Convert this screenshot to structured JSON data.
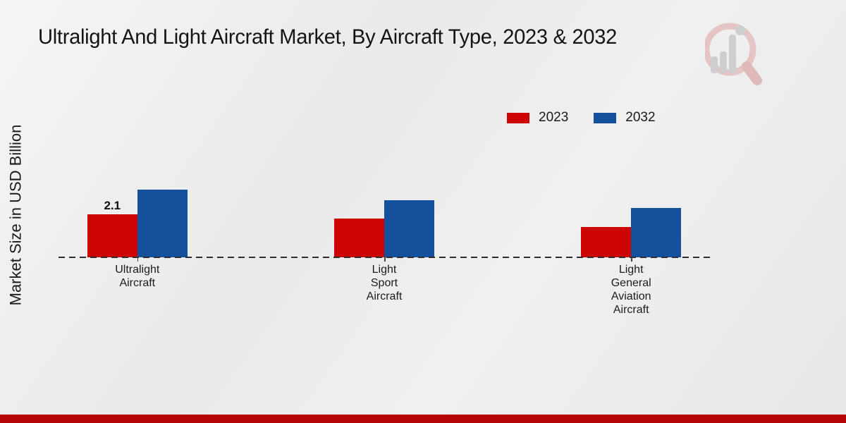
{
  "page": {
    "title": "Ultralight And Light Aircraft Market, By Aircraft Type, 2023 & 2032",
    "footer_color": "#b50404"
  },
  "colors": {
    "series_2023": "#cc0404",
    "series_2032": "#14509c",
    "footer_band": "#b50404",
    "baseline": "#2e2e2e"
  },
  "chart_data": {
    "type": "bar",
    "title": "Ultralight And Light Aircraft Market, By Aircraft Type, 2023 & 2032",
    "xlabel": "",
    "ylabel": "Market Size in USD Billion",
    "categories": [
      "Ultralight\nAircraft",
      "Light\nSport\nAircraft",
      "Light\nGeneral\nAviation\nAircraft"
    ],
    "series": [
      {
        "name": "2023",
        "color": "#cc0404",
        "values": [
          2.1,
          1.9,
          1.5
        ]
      },
      {
        "name": "2032",
        "color": "#14509c",
        "values": [
          3.3,
          2.8,
          2.4
        ]
      }
    ],
    "value_labels": [
      {
        "series_index": 0,
        "category_index": 0,
        "text": "2.1"
      }
    ],
    "ylim": [
      0,
      3.5
    ],
    "grid": false,
    "baseline_style": "dashed",
    "legend_position": "top-right"
  }
}
